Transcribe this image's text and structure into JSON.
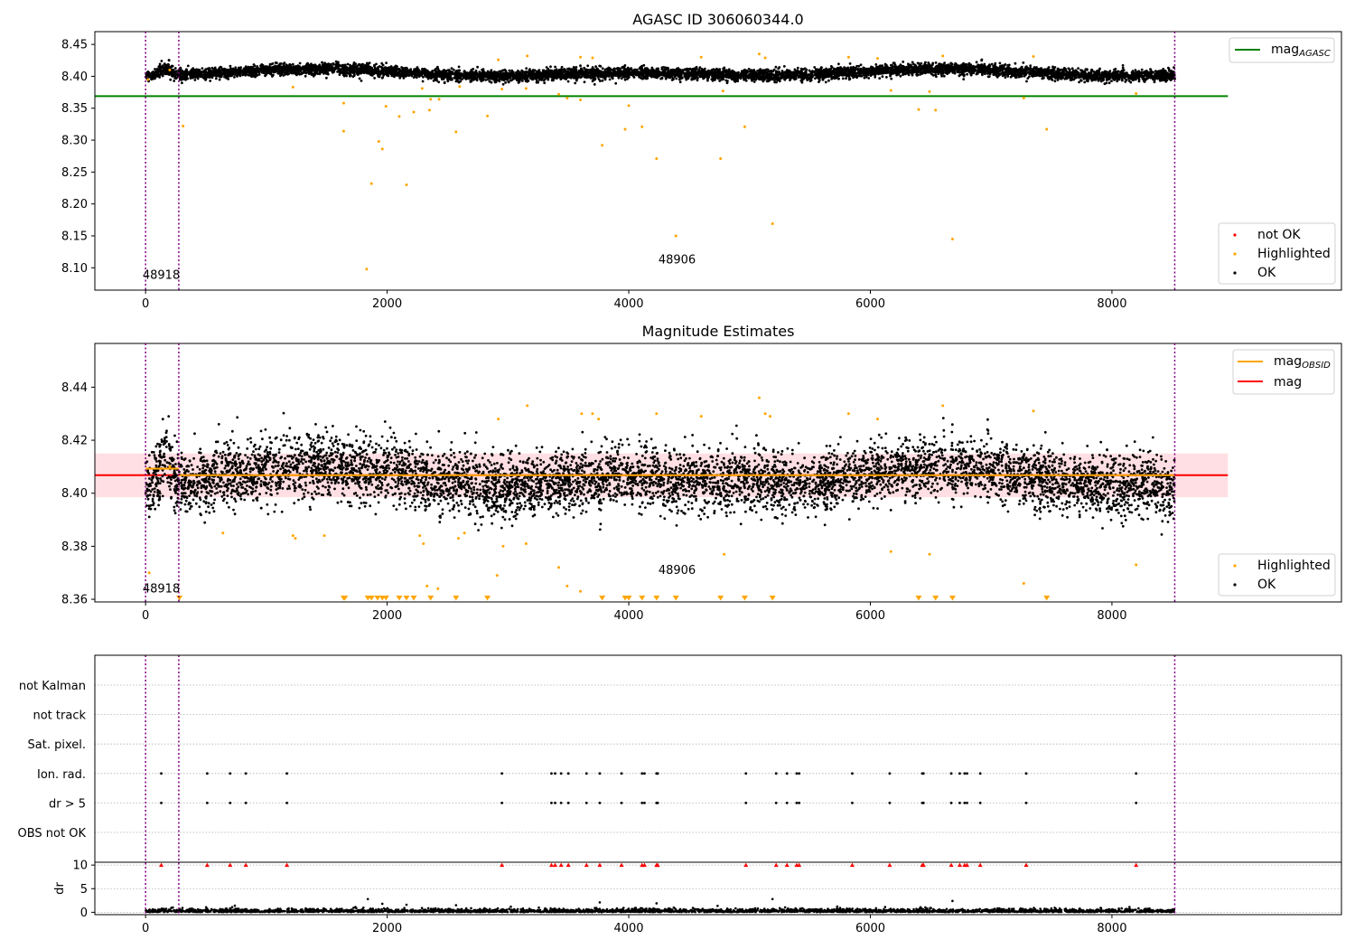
{
  "chart_data": [
    {
      "type": "scatter",
      "title": "AGASC ID 306060344.0",
      "xlabel": "",
      "ylabel": "",
      "xlim": [
        -420,
        9900
      ],
      "ylim": [
        8.065,
        8.47
      ],
      "xticks": [
        0,
        2000,
        4000,
        6000,
        8000
      ],
      "xtick_labels": [
        "0",
        "2000",
        "4000",
        "6000",
        "8000"
      ],
      "yticks": [
        8.1,
        8.15,
        8.2,
        8.25,
        8.3,
        8.35,
        8.4,
        8.45
      ],
      "ytick_labels": [
        "8.10",
        "8.15",
        "8.20",
        "8.25",
        "8.30",
        "8.35",
        "8.40",
        "8.45"
      ],
      "obsid_boundaries": [
        0,
        275,
        8520
      ],
      "obsid_labels": [
        {
          "text": "48918",
          "x": 130,
          "y": 8.083
        },
        {
          "text": "48906",
          "x": 4400,
          "y": 8.107
        }
      ],
      "reference_line": {
        "name": "mag_AGASC",
        "value": 8.369,
        "x_range": [
          -420,
          8960
        ],
        "color": "#008000"
      },
      "ok_band": {
        "center": 8.405,
        "spread": 0.008,
        "trend_amplitude": 0.006
      },
      "highlighted_points": [
        [
          20,
          8.395
        ],
        [
          200,
          8.41
        ],
        [
          310,
          8.322
        ],
        [
          1220,
          8.383
        ],
        [
          1640,
          8.358
        ],
        [
          1640,
          8.314
        ],
        [
          1830,
          8.098
        ],
        [
          1870,
          8.232
        ],
        [
          1930,
          8.298
        ],
        [
          1960,
          8.286
        ],
        [
          1990,
          8.353
        ],
        [
          2100,
          8.337
        ],
        [
          2160,
          8.23
        ],
        [
          2220,
          8.344
        ],
        [
          2290,
          8.381
        ],
        [
          2350,
          8.347
        ],
        [
          2360,
          8.364
        ],
        [
          2430,
          8.364
        ],
        [
          2570,
          8.313
        ],
        [
          2600,
          8.384
        ],
        [
          2830,
          8.338
        ],
        [
          2920,
          8.426
        ],
        [
          2950,
          8.38
        ],
        [
          3150,
          8.381
        ],
        [
          3160,
          8.432
        ],
        [
          3420,
          8.372
        ],
        [
          3490,
          8.366
        ],
        [
          3600,
          8.363
        ],
        [
          3600,
          8.43
        ],
        [
          3700,
          8.429
        ],
        [
          3780,
          8.292
        ],
        [
          3970,
          8.317
        ],
        [
          4000,
          8.354
        ],
        [
          4110,
          8.321
        ],
        [
          4230,
          8.271
        ],
        [
          4390,
          8.15
        ],
        [
          4600,
          8.43
        ],
        [
          4760,
          8.271
        ],
        [
          4780,
          8.377
        ],
        [
          4960,
          8.321
        ],
        [
          5080,
          8.435
        ],
        [
          5130,
          8.429
        ],
        [
          5190,
          8.169
        ],
        [
          5820,
          8.43
        ],
        [
          6060,
          8.428
        ],
        [
          6170,
          8.378
        ],
        [
          6400,
          8.348
        ],
        [
          6490,
          8.376
        ],
        [
          6540,
          8.347
        ],
        [
          6600,
          8.432
        ],
        [
          6680,
          8.145
        ],
        [
          7270,
          8.366
        ],
        [
          7350,
          8.431
        ],
        [
          7460,
          8.317
        ],
        [
          8200,
          8.373
        ]
      ],
      "legend": [
        "mag_AGASC",
        "not OK",
        "Highlighted",
        "OK"
      ],
      "legend_placement": [
        "top-right",
        "bottom-right"
      ]
    },
    {
      "type": "scatter",
      "title": "Magnitude Estimates",
      "xlabel": "",
      "ylabel": "",
      "xlim": [
        -420,
        9900
      ],
      "ylim": [
        8.359,
        8.4565
      ],
      "xticks": [
        0,
        2000,
        4000,
        6000,
        8000
      ],
      "xtick_labels": [
        "0",
        "2000",
        "4000",
        "6000",
        "8000"
      ],
      "yticks": [
        8.36,
        8.38,
        8.4,
        8.42,
        8.44
      ],
      "ytick_labels": [
        "8.36",
        "8.38",
        "8.40",
        "8.42",
        "8.44"
      ],
      "obsid_boundaries": [
        0,
        275,
        8520
      ],
      "obsid_labels": [
        {
          "text": "48918",
          "x": 130,
          "y": 8.3625
        },
        {
          "text": "48906",
          "x": 4400,
          "y": 8.3695
        }
      ],
      "mag_line": {
        "name": "mag",
        "value": 8.4068,
        "x_range": [
          -420,
          8960
        ],
        "color": "#ff0000"
      },
      "mag_band": {
        "low": 8.3985,
        "high": 8.415,
        "color": "#ffdfe3"
      },
      "obsid_mag_lines": [
        {
          "name": "mag_OBSID",
          "value": 8.4093,
          "x_range": [
            0,
            275
          ],
          "color": "#ffa500"
        },
        {
          "name": "mag_OBSID",
          "value": 8.4068,
          "x_range": [
            275,
            8520
          ],
          "color": "#ffa500"
        }
      ],
      "highlighted_points": [
        [
          30,
          8.37
        ],
        [
          200,
          8.41
        ],
        [
          640,
          8.385
        ],
        [
          1220,
          8.384
        ],
        [
          1240,
          8.383
        ],
        [
          1480,
          8.384
        ],
        [
          2270,
          8.384
        ],
        [
          2300,
          8.381
        ],
        [
          2330,
          8.365
        ],
        [
          2420,
          8.364
        ],
        [
          2590,
          8.383
        ],
        [
          2640,
          8.385
        ],
        [
          2910,
          8.369
        ],
        [
          2920,
          8.428
        ],
        [
          2960,
          8.38
        ],
        [
          3150,
          8.381
        ],
        [
          3160,
          8.433
        ],
        [
          3420,
          8.372
        ],
        [
          3490,
          8.365
        ],
        [
          3600,
          8.363
        ],
        [
          3610,
          8.43
        ],
        [
          3700,
          8.43
        ],
        [
          3750,
          8.428
        ],
        [
          4230,
          8.43
        ],
        [
          4600,
          8.429
        ],
        [
          4790,
          8.377
        ],
        [
          5080,
          8.436
        ],
        [
          5130,
          8.43
        ],
        [
          5170,
          8.429
        ],
        [
          5820,
          8.43
        ],
        [
          6060,
          8.428
        ],
        [
          6170,
          8.378
        ],
        [
          6490,
          8.377
        ],
        [
          6600,
          8.433
        ],
        [
          7270,
          8.366
        ],
        [
          7350,
          8.431
        ],
        [
          8200,
          8.373
        ]
      ],
      "clipped_low_markers": [
        280,
        1640,
        1650,
        1840,
        1870,
        1920,
        1960,
        1990,
        2100,
        2160,
        2220,
        2360,
        2570,
        2830,
        3780,
        3970,
        4000,
        4110,
        4230,
        4390,
        4760,
        4960,
        5190,
        6400,
        6540,
        6680,
        7460
      ],
      "legend": [
        "mag_OBSID",
        "mag",
        "Highlighted",
        "OK"
      ],
      "legend_placement": [
        "top-right",
        "bottom-right"
      ]
    },
    {
      "type": "scatter",
      "title": "",
      "xlabel": "",
      "ylabel": "",
      "xlim": [
        -420,
        9900
      ],
      "xticks": [
        0,
        2000,
        4000,
        6000,
        8000
      ],
      "xtick_labels": [
        "0",
        "2000",
        "4000",
        "6000",
        "8000"
      ],
      "flag_rows": [
        "not Kalman",
        "not track",
        "Sat. pixel.",
        "Ion. rad.",
        "dr > 5",
        "OBS not OK"
      ],
      "flag_points": {
        "Ion. rad.": [
          130,
          510,
          700,
          830,
          1170,
          2950,
          3360,
          3390,
          3440,
          3500,
          3650,
          3760,
          3940,
          4110,
          4130,
          4230,
          4240,
          4970,
          5220,
          5310,
          5390,
          5410,
          5850,
          6160,
          6430,
          6440,
          6670,
          6740,
          6780,
          6800,
          6910,
          7290,
          8200
        ],
        "dr > 5": [
          130,
          510,
          700,
          830,
          1170,
          2950,
          3360,
          3390,
          3440,
          3500,
          3650,
          3760,
          3940,
          4110,
          4130,
          4230,
          4240,
          4970,
          5220,
          5310,
          5390,
          5410,
          5850,
          6160,
          6430,
          6440,
          6670,
          6740,
          6780,
          6800,
          6910,
          7290,
          8200
        ]
      },
      "dr_axis": {
        "ylabel": "dr",
        "yticks": [
          0,
          5,
          10
        ],
        "ytick_labels": [
          "0",
          "5",
          "10"
        ],
        "ylim": [
          -0.5,
          10.6
        ],
        "clipped_high_markers": [
          130,
          510,
          700,
          830,
          1170,
          2950,
          3360,
          3390,
          3440,
          3500,
          3650,
          3760,
          3940,
          4110,
          4130,
          4230,
          4240,
          4970,
          5220,
          5310,
          5390,
          5410,
          5850,
          6160,
          6430,
          6440,
          6670,
          6740,
          6780,
          6800,
          6910,
          7290,
          8200
        ],
        "outliers": [
          [
            1840,
            2.8
          ],
          [
            1960,
            1.8
          ],
          [
            2160,
            1.6
          ],
          [
            2570,
            1.5
          ],
          [
            3760,
            2.1
          ],
          [
            4230,
            1.9
          ],
          [
            5190,
            2.8
          ],
          [
            6680,
            2.4
          ]
        ]
      },
      "obsid_boundaries": [
        0,
        275,
        8520
      ]
    }
  ],
  "legends": {
    "top1": {
      "mag_agasc_base": "mag",
      "mag_agasc_sub": "AGASC"
    },
    "bottom1": {
      "not_ok": "not OK",
      "highlighted": "Highlighted",
      "ok": "OK"
    },
    "top2": {
      "mag_obsid_base": "mag",
      "mag_obsid_sub": "OBSID",
      "mag": "mag"
    },
    "bottom2": {
      "highlighted": "Highlighted",
      "ok": "OK"
    }
  },
  "colors": {
    "ok": "#000000",
    "highlighted": "#ffa500",
    "not_ok": "#ff0000",
    "mag_agasc": "#008000",
    "mag": "#ff0000",
    "mag_obsid": "#ffa500",
    "mag_band": "#ffdfe3",
    "obsid_boundary": "#800080",
    "grid": "#b0b0b0"
  }
}
